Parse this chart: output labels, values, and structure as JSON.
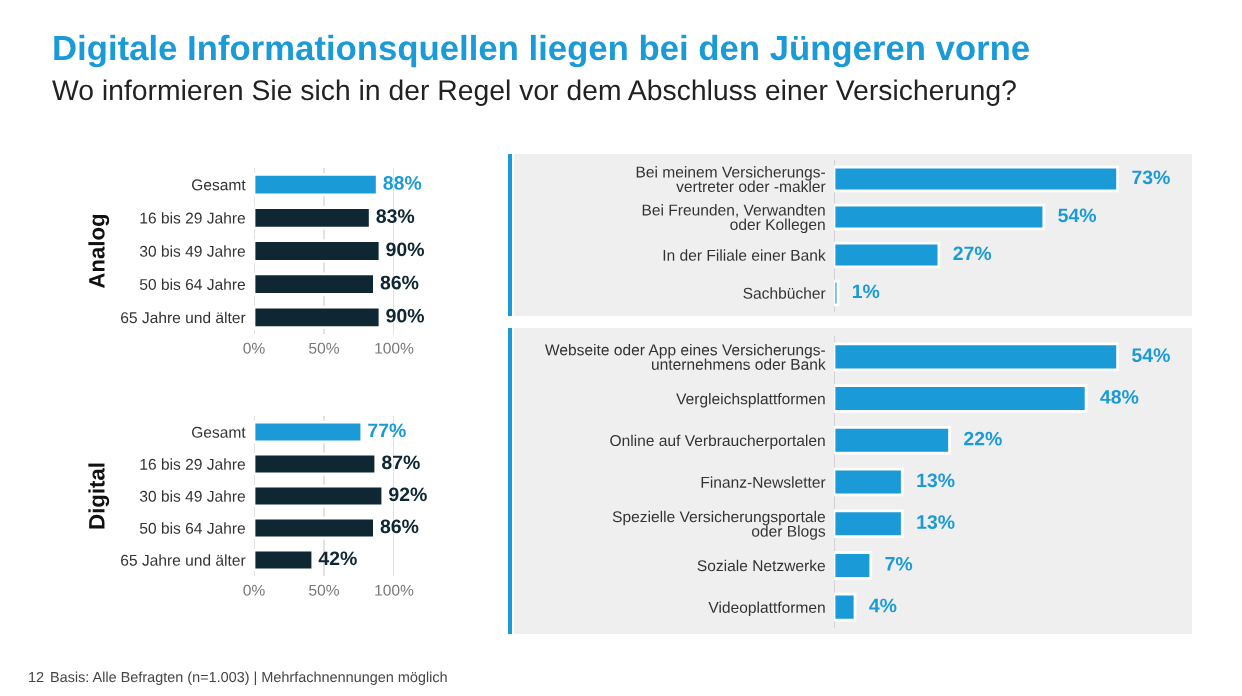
{
  "chart_data": [
    {
      "type": "bar",
      "orientation": "horizontal",
      "title": "Digitale Informationsquellen liegen bei den Jüngeren vorne",
      "subtitle": "Wo informieren Sie sich in der Regel vor dem Abschluss einer Versicherung?",
      "ylabel": "Analog",
      "categories": [
        "Gesamt",
        "16 bis 29 Jahre",
        "30 bis 49 Jahre",
        "50 bis 64 Jahre",
        "65 Jahre und älter"
      ],
      "values": [
        88,
        83,
        90,
        86,
        90
      ],
      "value_labels": [
        "88%",
        "83%",
        "90%",
        "86%",
        "90%"
      ],
      "colors": [
        "#1a9ad6",
        "#0f2733",
        "#0f2733",
        "#0f2733",
        "#0f2733"
      ],
      "xlim": [
        0,
        100
      ],
      "xticks": [
        {
          "value": 0,
          "label": "0%"
        },
        {
          "value": 50,
          "label": "50%"
        },
        {
          "value": 100,
          "label": "100%"
        }
      ],
      "grid": "x"
    },
    {
      "type": "bar",
      "orientation": "horizontal",
      "tick_labels": "y",
      "categories": [
        "Bei meinem Versicherungs-\nvertreter oder -makler",
        "Bei Freunden, Verwandten\noder Kollegen",
        "In der Filiale einer Bank",
        "Sachbücher"
      ],
      "values": [
        73,
        54,
        27,
        1
      ],
      "value_labels": [
        "73%",
        "54%",
        "27%",
        "1%"
      ],
      "color": "#1a9ad6"
    },
    {
      "type": "bar",
      "orientation": "horizontal",
      "ylabel": "Digital",
      "categories": [
        "Gesamt",
        "16 bis 29 Jahre",
        "30 bis 49 Jahre",
        "50 bis 64 Jahre",
        "65 Jahre und älter"
      ],
      "values": [
        77,
        87,
        92,
        86,
        42
      ],
      "value_labels": [
        "77%",
        "87%",
        "92%",
        "86%",
        "42%"
      ],
      "colors": [
        "#1a9ad6",
        "#0f2733",
        "#0f2733",
        "#0f2733",
        "#0f2733"
      ],
      "xlim": [
        0,
        100
      ],
      "xticks": [
        {
          "value": 0,
          "label": "0%"
        },
        {
          "value": 50,
          "label": "50%"
        },
        {
          "value": 100,
          "label": "100%"
        }
      ],
      "grid": "x"
    },
    {
      "type": "bar",
      "orientation": "horizontal",
      "tick_labels": "y",
      "categories": [
        "Webseite oder App eines Versicherungs-\nunternehmens oder Bank",
        "Vergleichsplattformen",
        "Online auf Verbraucherportalen",
        "Finanz-Newsletter",
        "Spezielle Versicherungsportale\noder Blogs",
        "Soziale Netzwerke",
        "Videoplattformen"
      ],
      "values": [
        54,
        48,
        22,
        13,
        13,
        7,
        4
      ],
      "value_labels": [
        "54%",
        "48%",
        "22%",
        "13%",
        "13%",
        "7%",
        "4%"
      ],
      "color": "#1a9ad6",
      "annotations": [
        "12",
        "Basis: Alle Befragten (n=1.003) | Mehrfachnennungen möglich"
      ]
    }
  ]
}
